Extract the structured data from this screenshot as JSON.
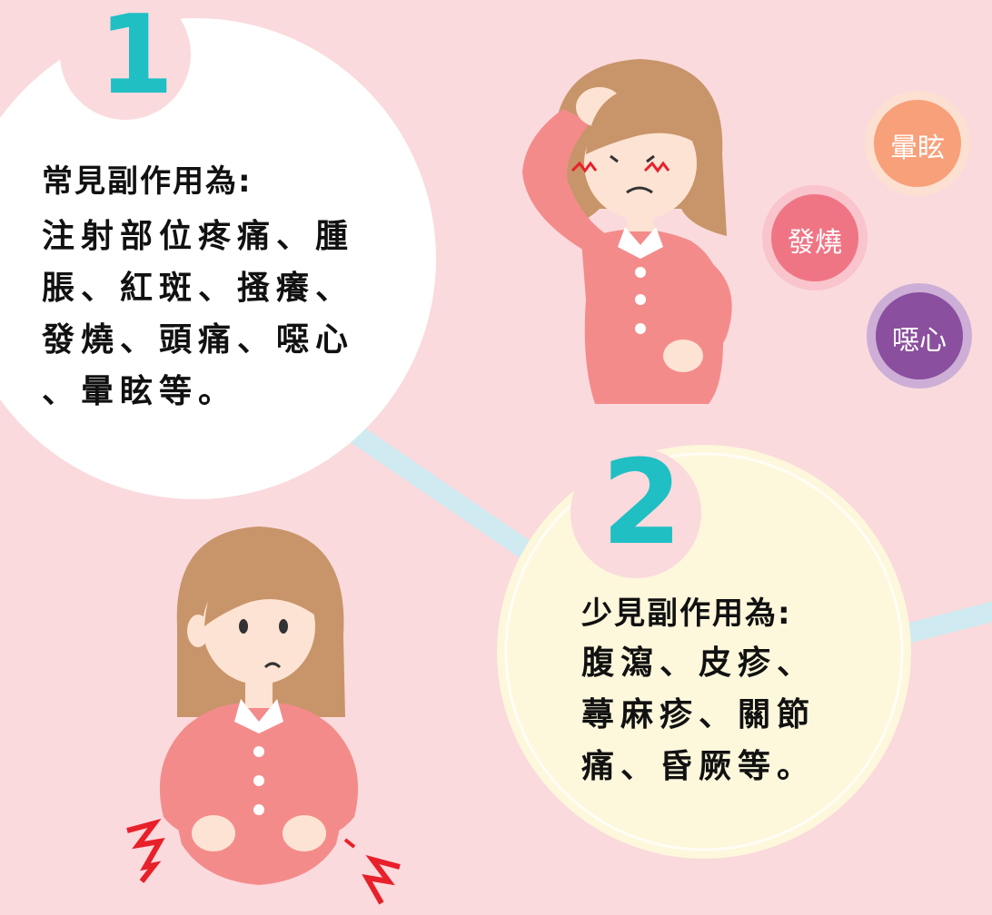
{
  "section1": {
    "number": "1",
    "title": "常見副作用為:",
    "lines": [
      "注射部位疼痛、腫",
      "脹、紅斑、搔癢、",
      "發燒、頭痛、噁心",
      "、暈眩等。"
    ]
  },
  "section2": {
    "number": "2",
    "title": "少見副作用為:",
    "lines": [
      "腹瀉、皮疹、",
      "蕁麻疹、關節",
      "痛、昏厥等。"
    ]
  },
  "bubbles": [
    {
      "label": "暈眩",
      "color": "#f8a07a"
    },
    {
      "label": "發燒",
      "color": "#ef7585"
    },
    {
      "label": "噁心",
      "color": "#8a4f9e"
    }
  ],
  "colors": {
    "background": "#fadadd",
    "accent_number": "#1fbfc4",
    "connector": "#cfeaf0",
    "circle1": "#ffffff",
    "circle2": "#fdf7dc",
    "shirt": "#f48b8b",
    "hair": "#c8956a",
    "skin": "#fde3d3",
    "pain_mark": "#e8202a"
  }
}
